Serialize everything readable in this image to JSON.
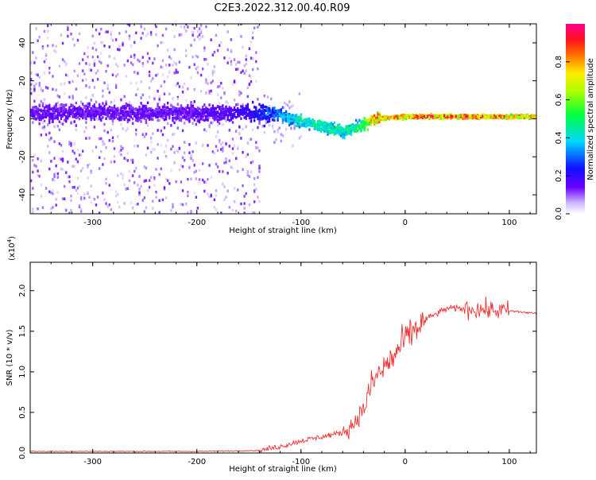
{
  "page": {
    "title": "C2E3.2022.312.00.40.R09"
  },
  "colors": {
    "background": "#ffffff",
    "snr_line": "#ee3333",
    "axis": "#000000"
  },
  "chart_data": [
    {
      "type": "heatmap",
      "title": "C2E3.2022.312.00.40.R09",
      "xlabel": "Height of straight line (km)",
      "ylabel": "Frequency (Hz)",
      "xlim": [
        -360,
        126
      ],
      "ylim": [
        -50,
        50
      ],
      "xticks": [
        -300,
        -200,
        -100,
        0,
        100
      ],
      "xtick_labels": [
        "-300",
        "-200",
        "-100",
        "0",
        "100"
      ],
      "yticks": [
        -40,
        -20,
        0,
        20,
        40
      ],
      "ytick_labels": [
        "-40",
        "-20",
        "0",
        "20",
        "40"
      ],
      "colorbar": {
        "label": "Normalized spectral amplitude",
        "range": [
          0,
          1
        ],
        "ticks": [
          0.0,
          0.2,
          0.4,
          0.6,
          0.8
        ],
        "tick_labels": [
          "0.0",
          "0.2",
          "0.4",
          "0.6",
          "0.8"
        ],
        "colormap": "rainbow (white to violet to blue to cyan to green to yellow to red to magenta)"
      },
      "ridge": [
        {
          "x": -355,
          "freq": 3,
          "amp": 0.15
        },
        {
          "x": -300,
          "freq": 3,
          "amp": 0.15
        },
        {
          "x": -250,
          "freq": 3,
          "amp": 0.15
        },
        {
          "x": -200,
          "freq": 3,
          "amp": 0.15
        },
        {
          "x": -150,
          "freq": 3,
          "amp": 0.2
        },
        {
          "x": -120,
          "freq": 2,
          "amp": 0.35
        },
        {
          "x": -100,
          "freq": -2,
          "amp": 0.45
        },
        {
          "x": -80,
          "freq": -4,
          "amp": 0.5
        },
        {
          "x": -60,
          "freq": -7,
          "amp": 0.45
        },
        {
          "x": -45,
          "freq": -4,
          "amp": 0.5
        },
        {
          "x": -30,
          "freq": 0,
          "amp": 0.8
        },
        {
          "x": 0,
          "freq": 1,
          "amp": 0.85
        },
        {
          "x": 50,
          "freq": 1,
          "amp": 0.85
        },
        {
          "x": 95,
          "freq": 1,
          "amp": 0.8
        },
        {
          "x": 126,
          "freq": 1,
          "amp": 0.8
        }
      ]
    },
    {
      "type": "line",
      "xlabel": "Height of straight line (km)",
      "ylabel": "SNR (10 * v/v)",
      "y_multiplier_label": "(x10",
      "y_multiplier_exp": "4",
      "y_multiplier_close": ")",
      "xlim": [
        -360,
        126
      ],
      "ylim": [
        0,
        2.35
      ],
      "xticks": [
        -300,
        -200,
        -100,
        0,
        100
      ],
      "xtick_labels": [
        "-300",
        "-200",
        "-100",
        "0",
        "100"
      ],
      "yticks": [
        0.0,
        0.5,
        1.0,
        1.5,
        2.0
      ],
      "ytick_labels": [
        "0.0",
        "0.5",
        "1.0",
        "1.5",
        "2.0"
      ],
      "series": [
        {
          "name": "SNR",
          "x": [
            -360,
            -300,
            -200,
            -140,
            -120,
            -100,
            -80,
            -60,
            -50,
            -40,
            -30,
            -20,
            -10,
            0,
            20,
            40,
            60,
            80,
            100,
            126
          ],
          "y": [
            0.02,
            0.02,
            0.02,
            0.03,
            0.08,
            0.15,
            0.2,
            0.25,
            0.35,
            0.55,
            0.9,
            1.05,
            1.2,
            1.4,
            1.65,
            1.78,
            1.78,
            1.76,
            1.75,
            1.72
          ]
        }
      ]
    }
  ]
}
